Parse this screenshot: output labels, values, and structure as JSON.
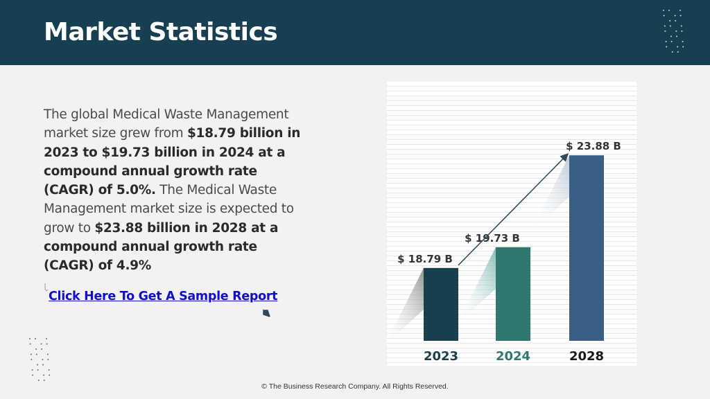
{
  "header": {
    "title": "Market Statistics"
  },
  "body": {
    "p1": "The global Medical Waste Management market size grew from ",
    "b1": "$18.79 billion in 2023 to $19.73 billion in 2024 at a compound annual growth rate (CAGR) of 5.0%.",
    "p2": "  The Medical Waste Management market size is expected to grow to ",
    "b2": "$23.88 billion in 2028 at a compound annual growth rate (CAGR) of 4.9%"
  },
  "link": {
    "label": "Click Here To Get A Sample Report"
  },
  "colors": {
    "header": "#173f52",
    "bar2023": "#173f4e",
    "bar2024": "#2e7870",
    "bar2028": "#3a5f85",
    "link": "#1010cc"
  },
  "chart_data": {
    "type": "bar",
    "categories": [
      "2023",
      "2024",
      "2028"
    ],
    "values": [
      18.79,
      19.73,
      23.88
    ],
    "value_labels": [
      "$ 18.79 B",
      "$ 19.73 B",
      "$ 23.88 B"
    ],
    "unit": "B",
    "category_colors": [
      "#173f4e",
      "#2e7870",
      "#1a1a1a"
    ],
    "title": "",
    "xlabel": "",
    "ylabel": "",
    "grid": true
  },
  "footer": {
    "text": "© The Business Research Company. All Rights Reserved."
  }
}
